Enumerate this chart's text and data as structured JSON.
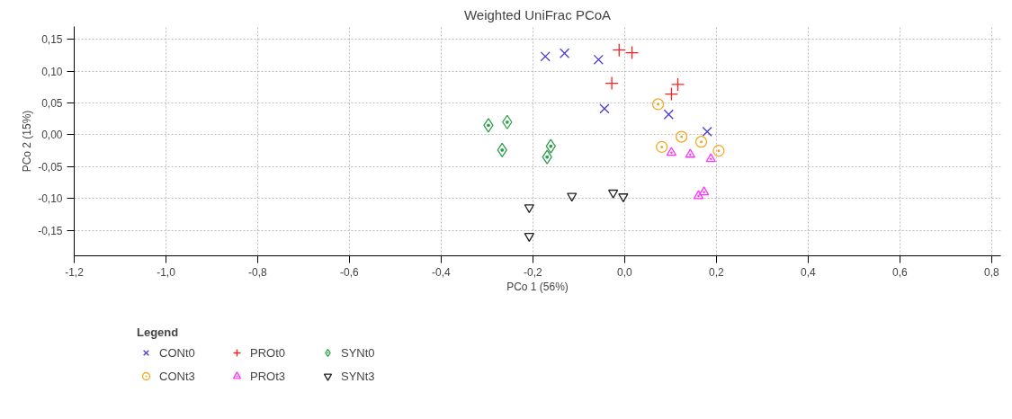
{
  "chart_data": {
    "type": "scatter",
    "title": "Weighted UniFrac PCoA",
    "xlabel": "PCo 1 (56%)",
    "ylabel": "PCo 2 (15%)",
    "legend_title": "Legend",
    "legend": "bottom left",
    "grid": true,
    "xlim": [
      -1.2,
      0.82
    ],
    "ylim": [
      -0.19,
      0.17
    ],
    "xticks": [
      {
        "value": -1.2,
        "label": "-1,2"
      },
      {
        "value": -1.0,
        "label": "-1,0"
      },
      {
        "value": -0.8,
        "label": "-0,8"
      },
      {
        "value": -0.6,
        "label": "-0,6"
      },
      {
        "value": -0.4,
        "label": "-0,4"
      },
      {
        "value": -0.2,
        "label": "-0,2"
      },
      {
        "value": 0,
        "label": "0,0"
      },
      {
        "value": 0.2,
        "label": "0,2"
      },
      {
        "value": 0.4,
        "label": "0,4"
      },
      {
        "value": 0.6,
        "label": "0,6"
      },
      {
        "value": 0.8,
        "label": "0,8"
      }
    ],
    "yticks": [
      {
        "value": -0.15,
        "label": "-0,15"
      },
      {
        "value": -0.1,
        "label": "-0,10"
      },
      {
        "value": -0.05,
        "label": "-0,05"
      },
      {
        "value": 0,
        "label": "0,00"
      },
      {
        "value": 0.05,
        "label": "0,05"
      },
      {
        "value": 0.1,
        "label": "0,10"
      },
      {
        "value": 0.15,
        "label": "0,15"
      }
    ],
    "series": [
      {
        "name": "CONt0",
        "color": "#4b3bd1",
        "marker": "x",
        "x": [
          -0.173,
          -0.131,
          -0.057,
          -0.044,
          0.096,
          0.18
        ],
        "values": [
          0.123,
          0.128,
          0.118,
          0.041,
          0.032,
          0.005
        ]
      },
      {
        "name": "PROt0",
        "color": "#ff2020",
        "marker": "cross",
        "x": [
          -0.012,
          0.016,
          -0.028,
          0.116,
          0.102
        ],
        "values": [
          0.133,
          0.129,
          0.081,
          0.079,
          0.064
        ]
      },
      {
        "name": "SYNt0",
        "color": "#2e9e4a",
        "marker": "diamond",
        "x": [
          -0.297,
          -0.256,
          -0.267,
          -0.161,
          -0.169
        ],
        "values": [
          0.015,
          0.02,
          -0.024,
          -0.018,
          -0.035
        ]
      },
      {
        "name": "CONt3",
        "color": "#f5a623",
        "marker": "circle",
        "x": [
          0.073,
          0.124,
          0.167,
          0.081,
          0.205
        ],
        "values": [
          0.048,
          -0.003,
          -0.011,
          -0.019,
          -0.025
        ]
      },
      {
        "name": "PROt3",
        "color": "#ff33ff",
        "marker": "triangle",
        "x": [
          0.102,
          0.143,
          0.188,
          0.161,
          0.173
        ],
        "values": [
          -0.028,
          -0.031,
          -0.038,
          -0.096,
          -0.09
        ]
      },
      {
        "name": "SYNt3",
        "color": "#222222",
        "x": [
          -0.208,
          -0.208,
          -0.115,
          -0.025,
          -0.003
        ],
        "values": [
          -0.114,
          -0.159,
          -0.096,
          -0.091,
          -0.097
        ]
      }
    ]
  }
}
